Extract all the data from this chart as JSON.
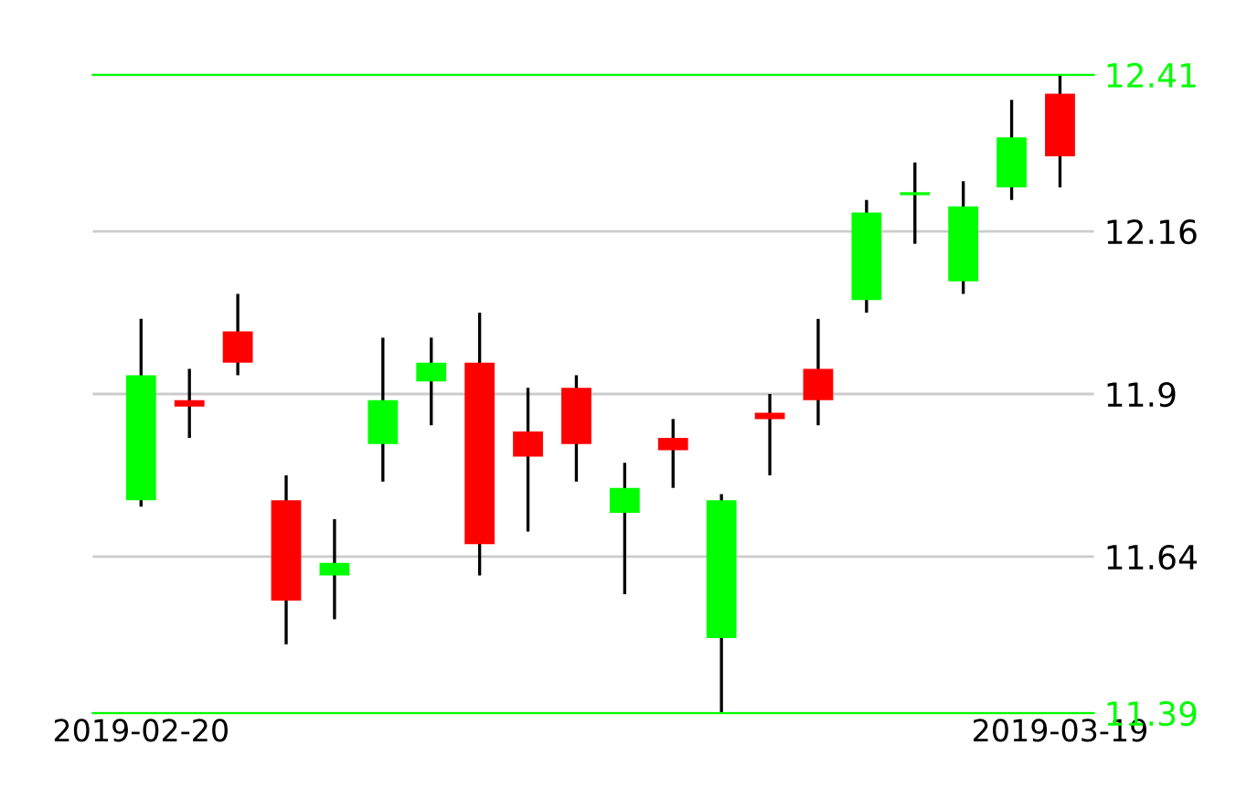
{
  "chart_data": {
    "type": "candlestick",
    "categories": [
      "2019-02-20",
      null,
      null,
      null,
      null,
      null,
      null,
      null,
      null,
      null,
      null,
      null,
      null,
      null,
      null,
      null,
      null,
      null,
      null,
      "2019-03-19"
    ],
    "ohlc": [
      [
        11.73,
        12.02,
        11.72,
        11.93
      ],
      [
        11.89,
        11.94,
        11.83,
        11.88
      ],
      [
        12.0,
        12.06,
        11.93,
        11.95
      ],
      [
        11.73,
        11.77,
        11.5,
        11.57
      ],
      [
        11.61,
        11.7,
        11.54,
        11.63
      ],
      [
        11.82,
        11.99,
        11.76,
        11.89
      ],
      [
        11.92,
        11.99,
        11.85,
        11.95
      ],
      [
        11.95,
        12.03,
        11.61,
        11.66
      ],
      [
        11.84,
        11.91,
        11.68,
        11.8
      ],
      [
        11.91,
        11.93,
        11.76,
        11.82
      ],
      [
        11.71,
        11.79,
        11.58,
        11.75
      ],
      [
        11.83,
        11.86,
        11.75,
        11.81
      ],
      [
        11.51,
        11.74,
        11.39,
        11.73
      ],
      [
        11.87,
        11.9,
        11.77,
        11.86
      ],
      [
        11.94,
        12.02,
        11.85,
        11.89
      ],
      [
        12.05,
        12.21,
        12.03,
        12.19
      ],
      [
        12.22,
        12.27,
        12.14,
        12.22
      ],
      [
        12.08,
        12.24,
        12.06,
        12.2
      ],
      [
        12.23,
        12.37,
        12.21,
        12.31
      ],
      [
        12.38,
        12.41,
        12.23,
        12.28
      ]
    ],
    "colors": [
      "#00ff00",
      "#ff0000",
      "#ff0000",
      "#ff0000",
      "#00ff00",
      "#00ff00",
      "#00ff00",
      "#ff0000",
      "#ff0000",
      "#ff0000",
      "#00ff00",
      "#ff0000",
      "#00ff00",
      "#ff0000",
      "#ff0000",
      "#00ff00",
      "#00ff00",
      "#00ff00",
      "#00ff00",
      "#ff0000"
    ],
    "ylim": [
      11.39,
      12.41
    ],
    "yticks": [
      11.39,
      11.64,
      11.9,
      12.16,
      12.41
    ],
    "grid": "y"
  }
}
